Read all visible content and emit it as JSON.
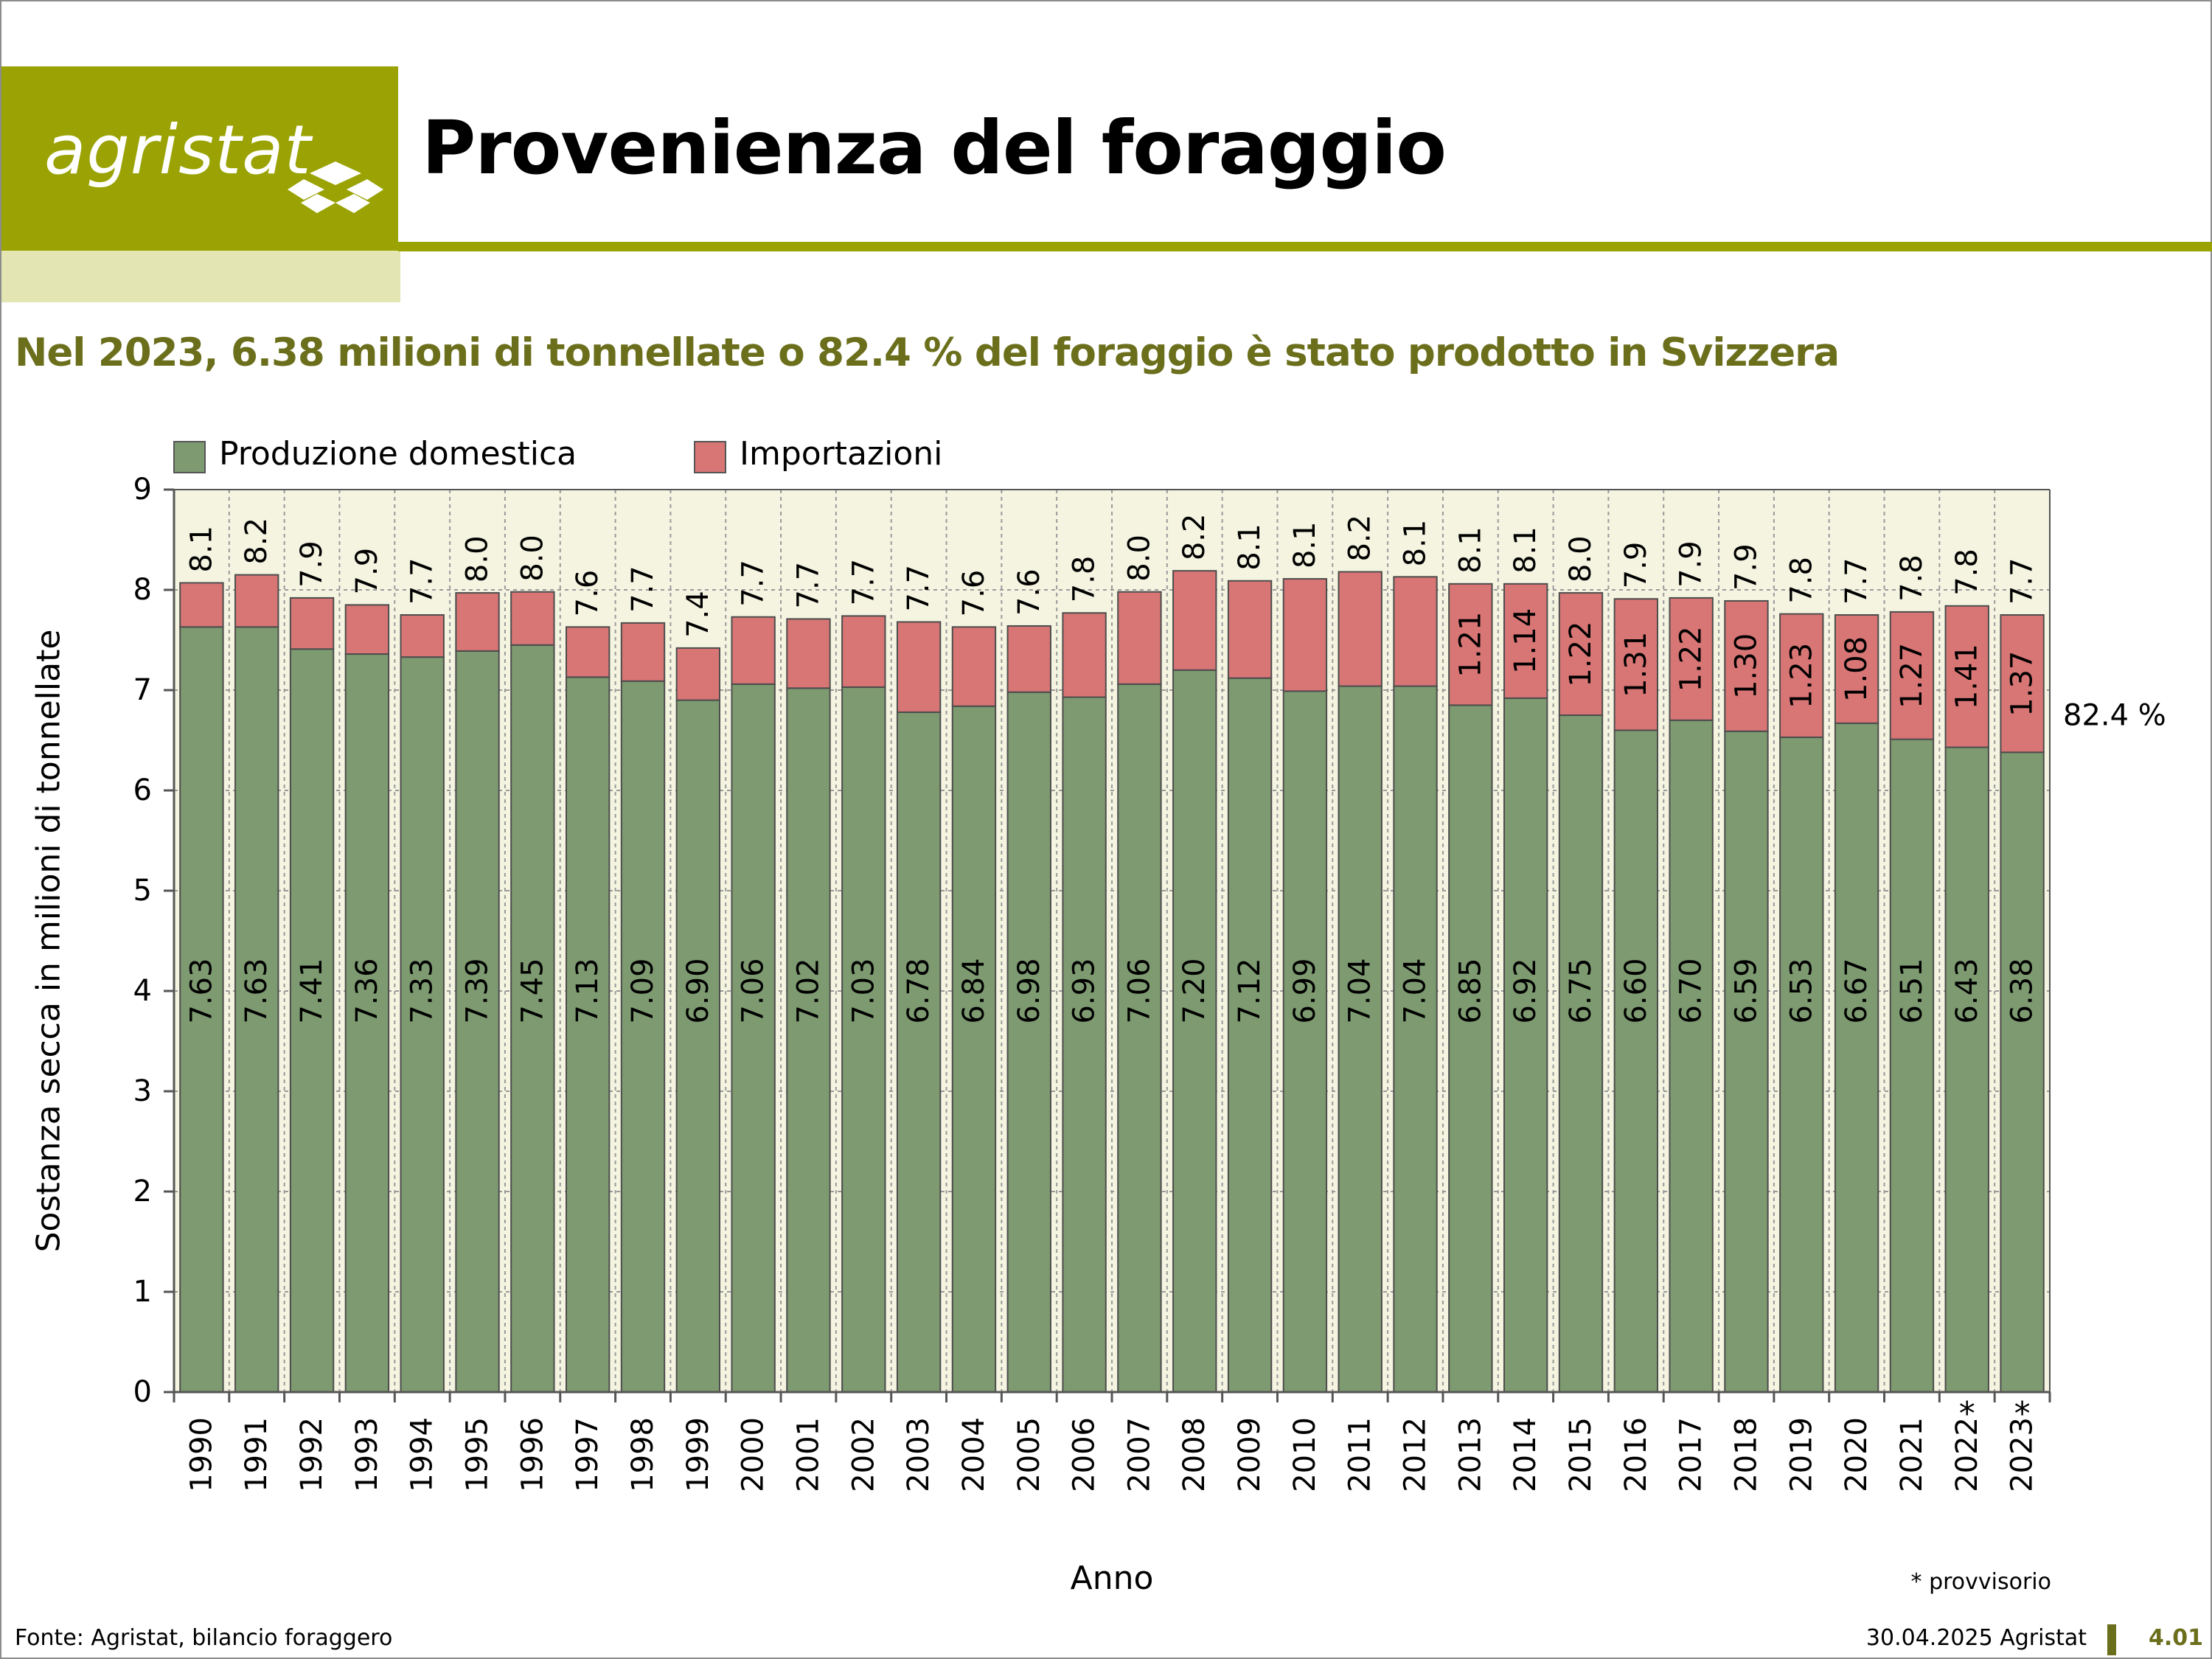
{
  "header": {
    "logo_text": "agristat",
    "title": "Provenienza del foraggio",
    "subtitle": "Nel 2023, 6.38 milioni di tonnellate o 82.4 % del foraggio è stato prodotto in Svizzera"
  },
  "colors": {
    "domestic": "#7d9a70",
    "imports": "#d87575",
    "plot_background": "#f4f4e1",
    "accent": "#9aa303"
  },
  "chart_data": {
    "type": "bar",
    "stacked": true,
    "title": "",
    "xlabel": "Anno",
    "ylabel": "Sostanza secca in milioni di tonnellate",
    "ylim": [
      0,
      9
    ],
    "yticks": [
      "0",
      "1",
      "2",
      "3",
      "4",
      "5",
      "6",
      "7",
      "8",
      "9"
    ],
    "grid": true,
    "legend_position": "top-left",
    "categories": [
      "1990",
      "1991",
      "1992",
      "1993",
      "1994",
      "1995",
      "1996",
      "1997",
      "1998",
      "1999",
      "2000",
      "2001",
      "2002",
      "2003",
      "2004",
      "2005",
      "2006",
      "2007",
      "2008",
      "2009",
      "2010",
      "2011",
      "2012",
      "2013",
      "2014",
      "2015",
      "2016",
      "2017",
      "2018",
      "2019",
      "2020",
      "2021",
      "2022",
      "2023"
    ],
    "provisional_marks": [
      "",
      "",
      "",
      "",
      "",
      "",
      "",
      "",
      "",
      "",
      "",
      "",
      "",
      "",
      "",
      "",
      "",
      "",
      "",
      "",
      "",
      "",
      "",
      "",
      "",
      "",
      "",
      "",
      "",
      "",
      "",
      "",
      "*",
      "*"
    ],
    "series": [
      {
        "name": "Produzione domestica",
        "values": [
          7.63,
          7.63,
          7.41,
          7.36,
          7.33,
          7.39,
          7.45,
          7.13,
          7.09,
          6.9,
          7.06,
          7.02,
          7.03,
          6.78,
          6.84,
          6.98,
          6.93,
          7.06,
          7.2,
          7.12,
          6.99,
          7.04,
          7.04,
          6.85,
          6.92,
          6.75,
          6.6,
          6.7,
          6.59,
          6.53,
          6.67,
          6.51,
          6.43,
          6.38
        ],
        "labels": [
          "7.63",
          "7.63",
          "7.41",
          "7.36",
          "7.33",
          "7.39",
          "7.45",
          "7.13",
          "7.09",
          "6.90",
          "7.06",
          "7.02",
          "7.03",
          "6.78",
          "6.84",
          "6.98",
          "6.93",
          "7.06",
          "7.20",
          "7.12",
          "6.99",
          "7.04",
          "7.04",
          "6.85",
          "6.92",
          "6.75",
          "6.60",
          "6.70",
          "6.59",
          "6.53",
          "6.67",
          "6.51",
          "6.43",
          "6.38"
        ]
      },
      {
        "name": "Importazioni",
        "values": [
          0.44,
          0.52,
          0.51,
          0.49,
          0.42,
          0.58,
          0.53,
          0.5,
          0.58,
          0.52,
          0.67,
          0.69,
          0.71,
          0.9,
          0.79,
          0.66,
          0.84,
          0.92,
          0.99,
          0.97,
          1.12,
          1.14,
          1.09,
          1.21,
          1.14,
          1.22,
          1.31,
          1.22,
          1.3,
          1.23,
          1.08,
          1.27,
          1.41,
          1.37
        ],
        "labels": [
          "",
          "",
          "",
          "",
          "",
          "",
          "",
          "",
          "",
          "",
          "",
          "",
          "",
          "",
          "",
          "",
          "",
          "",
          "",
          "",
          "",
          "",
          "",
          "1.21",
          "1.14",
          "1.22",
          "1.31",
          "1.22",
          "1.30",
          "1.23",
          "1.08",
          "1.27",
          "1.41",
          "1.37"
        ]
      }
    ],
    "totals": [
      "8.1",
      "8.2",
      "7.9",
      "7.9",
      "7.7",
      "8.0",
      "8.0",
      "7.6",
      "7.7",
      "7.4",
      "7.7",
      "7.7",
      "7.7",
      "7.7",
      "7.6",
      "7.6",
      "7.8",
      "8.0",
      "8.2",
      "8.1",
      "8.1",
      "8.2",
      "8.1",
      "8.1",
      "8.1",
      "8.0",
      "7.9",
      "7.9",
      "7.9",
      "7.8",
      "7.7",
      "7.8",
      "7.8",
      "7.7"
    ],
    "annotation": "82.4 %"
  },
  "footer": {
    "note": "* provvisorio",
    "source": "Fonte: Agristat, bilancio foraggero",
    "date": "30.04.2025 Agristat",
    "page": "4.01"
  }
}
